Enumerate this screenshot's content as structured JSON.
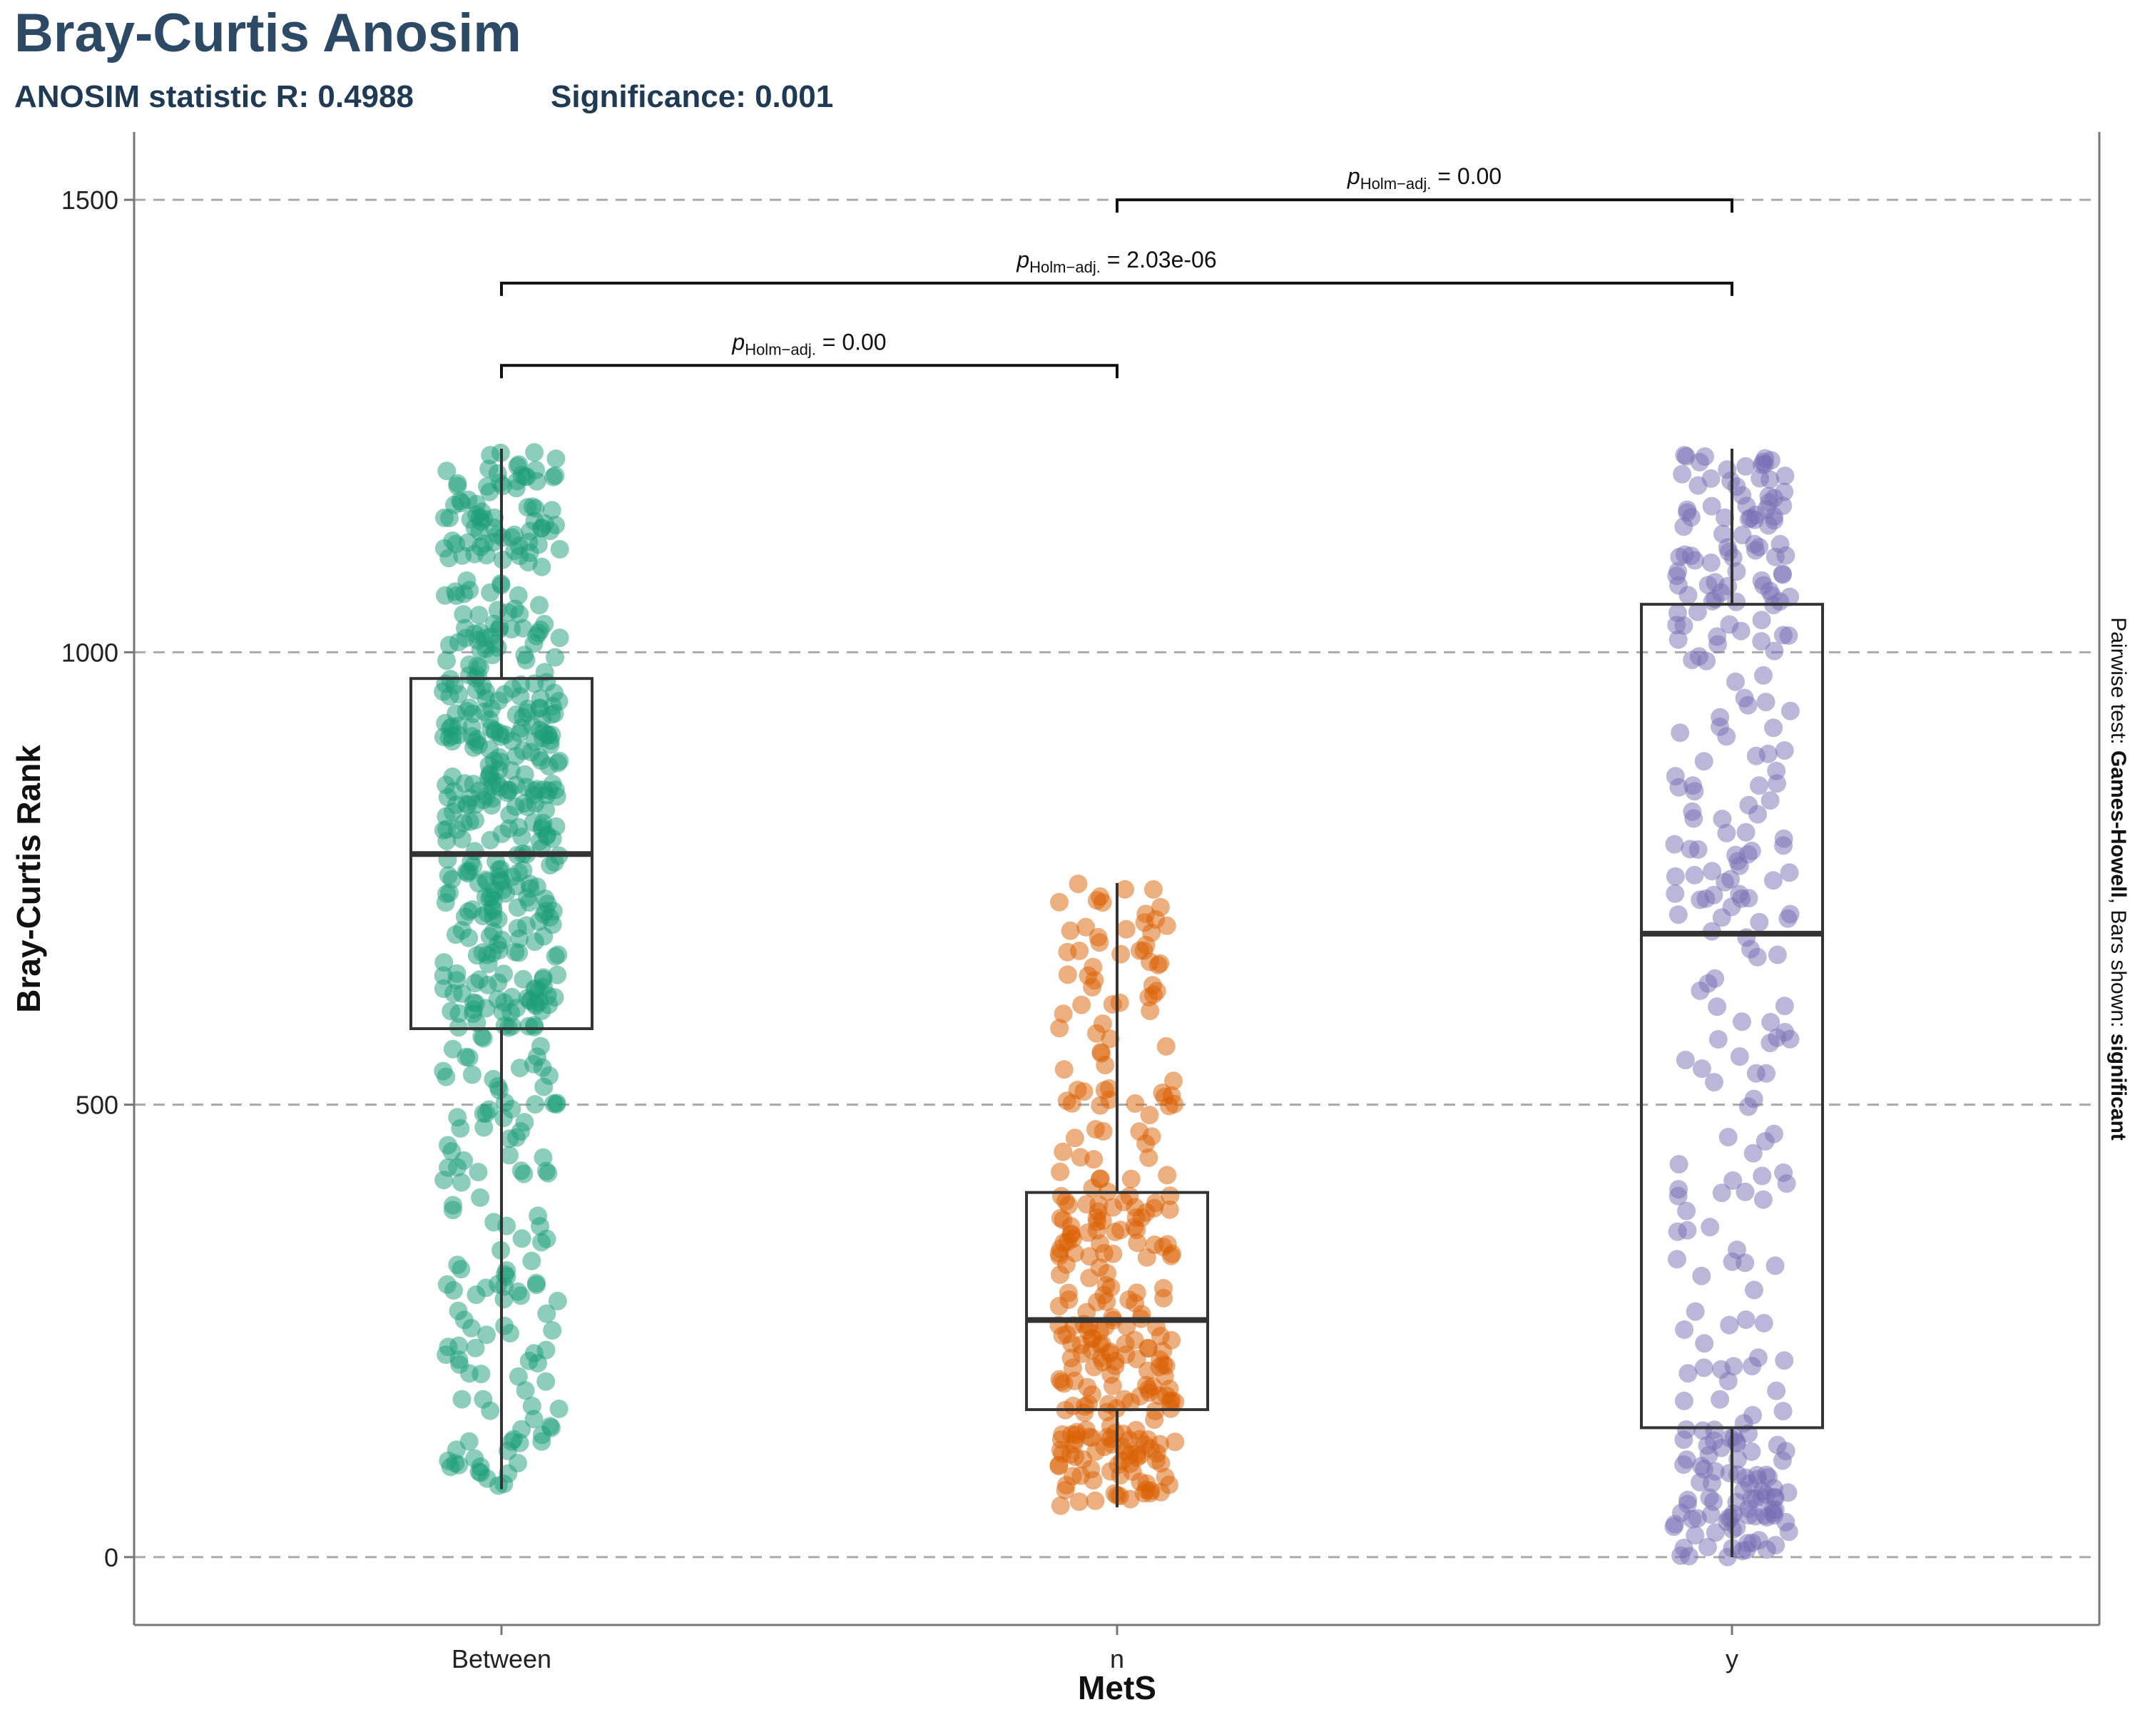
{
  "chart_data": {
    "type": "box",
    "title": "Bray-Curtis Anosim",
    "subtitle": {
      "statistic": "ANOSIM statistic R: 0.4988",
      "significance": "Significance: 0.001"
    },
    "xlabel": "MetS",
    "ylabel": "Bray-Curtis Rank",
    "categories": [
      "Between",
      "n",
      "y"
    ],
    "ylim": [
      -75,
      1575
    ],
    "yticks": [
      0,
      500,
      1000,
      1500
    ],
    "grid": "horizontal-dashed",
    "caption": {
      "prefix": "Pairwise test: ",
      "test": "Games-Howell",
      "middle": ", Bars shown: ",
      "shown": "significant"
    },
    "series": [
      {
        "name": "Between",
        "color": "#1b9e77",
        "n": 550,
        "box": {
          "min": 75,
          "q1": 584,
          "median": 777,
          "q3": 971,
          "max": 1225
        }
      },
      {
        "name": "n",
        "color": "#d95f02",
        "n": 300,
        "box": {
          "min": 55,
          "q1": 163,
          "median": 262,
          "q3": 403,
          "max": 745
        }
      },
      {
        "name": "y",
        "color": "#7570b3",
        "n": 310,
        "box": {
          "min": 0,
          "q1": 143,
          "median": 689,
          "q3": 1053,
          "max": 1225
        }
      }
    ],
    "comparisons": [
      {
        "from": "Between",
        "to": "n",
        "y": 1317,
        "p_symbol": "p",
        "p_sub": "Holm−adj.",
        "p_value": " = 0.00"
      },
      {
        "from": "Between",
        "to": "y",
        "y": 1408,
        "p_symbol": "p",
        "p_sub": "Holm−adj.",
        "p_value": " = 2.03e-06"
      },
      {
        "from": "n",
        "to": "y",
        "y": 1500,
        "p_symbol": "p",
        "p_sub": "Holm−adj.",
        "p_value": " = 0.00"
      }
    ]
  }
}
